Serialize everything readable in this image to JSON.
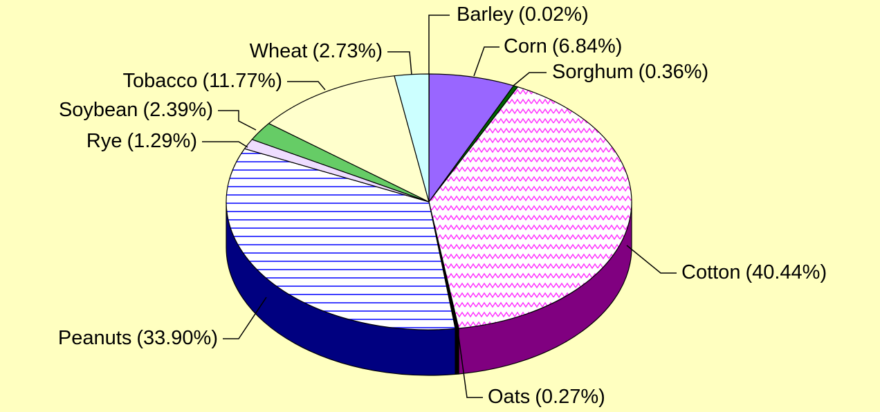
{
  "chart_data": {
    "type": "pie",
    "categories": [
      "Barley",
      "Corn",
      "Sorghum",
      "Cotton",
      "Oats",
      "Peanuts",
      "Rye",
      "Soybean",
      "Tobacco",
      "Wheat"
    ],
    "values": [
      0.02,
      6.84,
      0.36,
      40.44,
      0.27,
      33.9,
      1.29,
      2.39,
      11.77,
      2.73
    ],
    "value_labels": [
      "(0.02%)",
      "(6.84%)",
      "(0.36%)",
      "(40.44%)",
      "(0.27%)",
      "(33.90%)",
      "(1.29%)",
      "(2.39%)",
      "(11.77%)",
      "(2.73%)"
    ],
    "colors": [
      "#6666ff",
      "#9966ff",
      "#006600",
      "#ff99ff",
      "#000000",
      "#ccccff",
      "#eeddff",
      "#66cc66",
      "#ffffcc",
      "#ccffff"
    ],
    "side_colors": [
      "#333399",
      "#5522aa",
      "#003300",
      "#800080",
      "#000000",
      "#000080",
      "#9988bb",
      "#336633",
      "#aaaa77",
      "#66aaaa"
    ]
  }
}
